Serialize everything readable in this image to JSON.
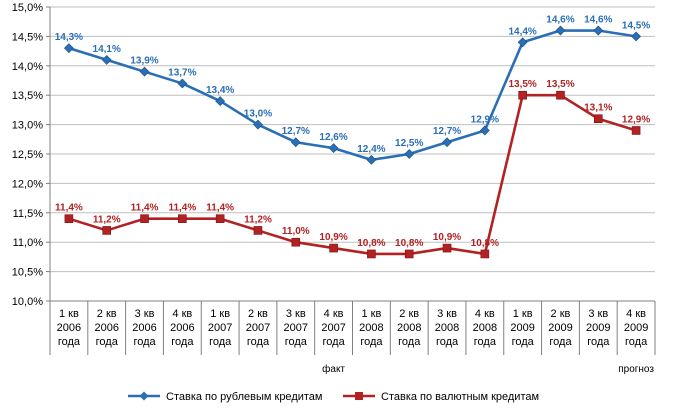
{
  "chart_data": {
    "type": "line",
    "categories": [
      [
        "1 кв",
        "2006",
        "года"
      ],
      [
        "2 кв",
        "2006",
        "года"
      ],
      [
        "3 кв",
        "2006",
        "года"
      ],
      [
        "4 кв",
        "2006",
        "года"
      ],
      [
        "1 кв",
        "2007",
        "года"
      ],
      [
        "2 кв",
        "2007",
        "года"
      ],
      [
        "3 кв",
        "2007",
        "года"
      ],
      [
        "4 кв",
        "2007",
        "года"
      ],
      [
        "1 кв",
        "2008",
        "года"
      ],
      [
        "2 кв",
        "2008",
        "года"
      ],
      [
        "3 кв",
        "2008",
        "года"
      ],
      [
        "4 кв",
        "2008",
        "года"
      ],
      [
        "1 кв",
        "2009",
        "года"
      ],
      [
        "2 кв",
        "2009",
        "года"
      ],
      [
        "3 кв",
        "2009",
        "года"
      ],
      [
        "4 кв",
        "2009",
        "года"
      ]
    ],
    "series": [
      {
        "name": "Ставка по рублевым кредитам",
        "color": "#2a6fb5",
        "marker": "diamond",
        "values": [
          14.3,
          14.1,
          13.9,
          13.7,
          13.4,
          13.0,
          12.7,
          12.6,
          12.4,
          12.5,
          12.7,
          12.9,
          14.4,
          14.6,
          14.6,
          14.5
        ],
        "labels": [
          "14,3%",
          "14,1%",
          "13,9%",
          "13,7%",
          "13,4%",
          "13,0%",
          "12,7%",
          "12,6%",
          "12,4%",
          "12,5%",
          "12,7%",
          "12,9%",
          "14,4%",
          "14,6%",
          "14,6%",
          "14,5%"
        ]
      },
      {
        "name": "Ставка по валютным кредитам",
        "color": "#b22222",
        "marker": "square",
        "values": [
          11.4,
          11.2,
          11.4,
          11.4,
          11.4,
          11.2,
          11.0,
          10.9,
          10.8,
          10.8,
          10.9,
          10.8,
          13.5,
          13.5,
          13.1,
          12.9
        ],
        "labels": [
          "11,4%",
          "11,2%",
          "11,4%",
          "11,4%",
          "11,4%",
          "11,2%",
          "11,0%",
          "10,9%",
          "10,8%",
          "10,8%",
          "10,9%",
          "10,8%",
          "13,5%",
          "13,5%",
          "13,1%",
          "12,9%"
        ]
      }
    ],
    "ylim": [
      10.0,
      15.0
    ],
    "yticks": [
      10.0,
      10.5,
      11.0,
      11.5,
      12.0,
      12.5,
      13.0,
      13.5,
      14.0,
      14.5,
      15.0
    ],
    "ytick_labels": [
      "10,0%",
      "10,5%",
      "11,0%",
      "11,5%",
      "12,0%",
      "12,5%",
      "13,0%",
      "13,5%",
      "14,0%",
      "14,5%",
      "15,0%"
    ],
    "category_groups": [
      {
        "label": "факт",
        "start": 0,
        "end": 14
      },
      {
        "label": "прогноз",
        "start": 15,
        "end": 15
      }
    ],
    "grid": true,
    "legend_position": "bottom",
    "title": "",
    "xlabel": "",
    "ylabel": ""
  }
}
